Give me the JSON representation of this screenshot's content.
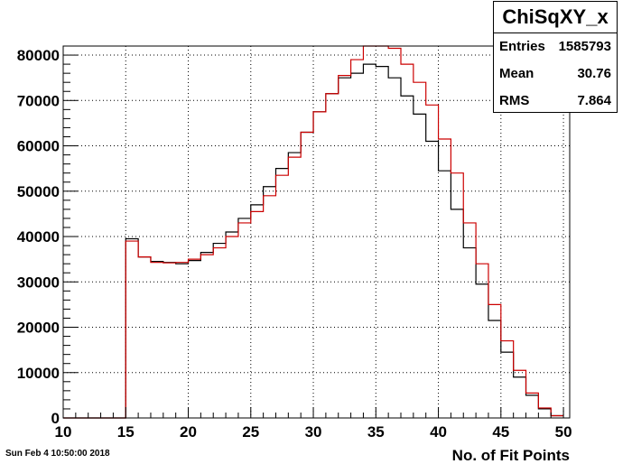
{
  "chart_data": {
    "type": "histogram",
    "xlabel": "No. of Fit Points",
    "ylabel": "",
    "xlim": [
      10,
      50.5
    ],
    "ylim": [
      0,
      82000
    ],
    "x_ticks": [
      10,
      15,
      20,
      25,
      30,
      35,
      40,
      45,
      50
    ],
    "y_ticks": [
      0,
      10000,
      20000,
      30000,
      40000,
      50000,
      60000,
      70000,
      80000
    ],
    "grid": true,
    "bin_edges": [
      10,
      11,
      12,
      13,
      14,
      15,
      16,
      17,
      18,
      19,
      20,
      21,
      22,
      23,
      24,
      25,
      26,
      27,
      28,
      29,
      30,
      31,
      32,
      33,
      34,
      35,
      36,
      37,
      38,
      39,
      40,
      41,
      42,
      43,
      44,
      45,
      46,
      47,
      48,
      49,
      50
    ],
    "series": [
      {
        "color": "#000000",
        "values": [
          0,
          0,
          0,
          0,
          0,
          39500,
          35500,
          34500,
          34300,
          34000,
          34700,
          36500,
          38500,
          41000,
          44000,
          47000,
          51000,
          55000,
          58500,
          63000,
          67500,
          71500,
          75000,
          76000,
          78000,
          77500,
          75000,
          71000,
          67000,
          61000,
          54500,
          46000,
          37500,
          29500,
          21500,
          14500,
          9000,
          5000,
          2000,
          500
        ]
      },
      {
        "color": "#cc0000",
        "values": [
          0,
          0,
          0,
          0,
          0,
          39000,
          35500,
          34300,
          34200,
          34300,
          35000,
          36000,
          37500,
          40000,
          43000,
          45500,
          49000,
          53500,
          57500,
          63000,
          67500,
          71500,
          75500,
          79000,
          82000,
          82000,
          81500,
          78000,
          74000,
          69000,
          61500,
          54000,
          43000,
          34000,
          25000,
          17000,
          10500,
          5500,
          2200,
          500
        ]
      }
    ],
    "stats": {
      "title": "ChiSqXY_x",
      "rows": [
        {
          "label": "Entries",
          "value": "1585793"
        },
        {
          "label": "Mean",
          "value": "30.76"
        },
        {
          "label": "RMS",
          "value": "7.864"
        }
      ]
    }
  },
  "footer": {
    "timestamp": "Sun Feb  4 10:50:00 2018"
  }
}
